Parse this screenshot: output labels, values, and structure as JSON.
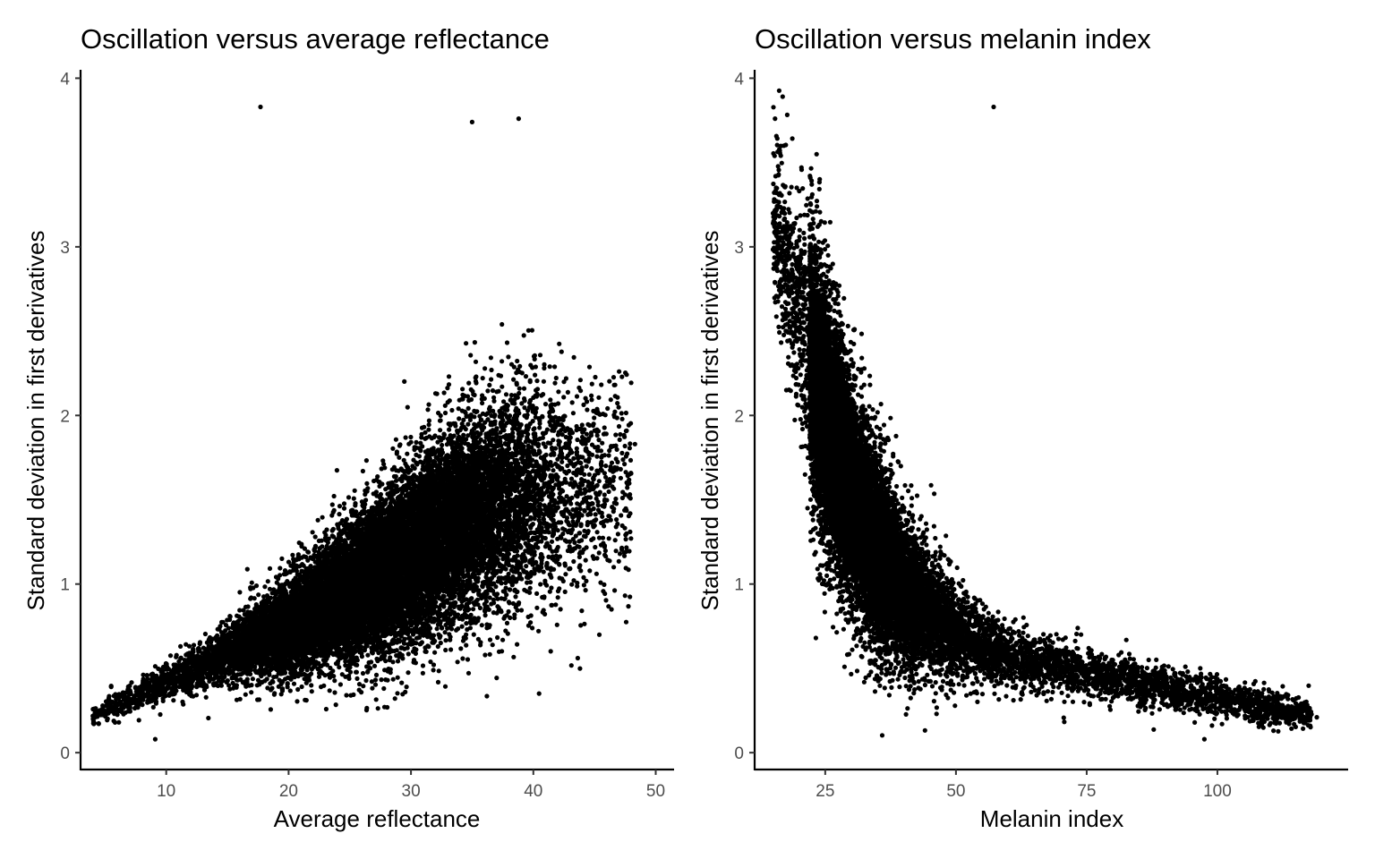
{
  "chart_data": [
    {
      "type": "scatter",
      "title": "Oscillation versus average reflectance",
      "xlabel": "Average reflectance",
      "ylabel": "Standard deviation in first derivatives",
      "xlim": [
        3,
        51.5
      ],
      "ylim": [
        -0.1,
        4.05
      ],
      "xticks": [
        10,
        20,
        30,
        40,
        50
      ],
      "yticks": [
        0,
        1,
        2,
        3,
        4
      ],
      "grid": false,
      "legend": "none",
      "point_color": "#000000",
      "n_points": 18000,
      "trend": {
        "x": [
          4,
          10,
          15,
          20,
          25,
          30,
          35,
          40,
          45,
          48
        ],
        "y": [
          0.22,
          0.42,
          0.58,
          0.75,
          0.95,
          1.18,
          1.42,
          1.55,
          1.55,
          1.6
        ],
        "spread": [
          0.04,
          0.06,
          0.1,
          0.16,
          0.22,
          0.28,
          0.35,
          0.38,
          0.38,
          0.35
        ]
      },
      "notable_points": [
        {
          "x": 17.7,
          "y": 3.83
        },
        {
          "x": 38.8,
          "y": 3.76
        },
        {
          "x": 35.0,
          "y": 3.74
        },
        {
          "x": 48.3,
          "y": 1.83
        },
        {
          "x": 9.1,
          "y": 0.08
        },
        {
          "x": 4.2,
          "y": 0.25
        }
      ]
    },
    {
      "type": "scatter",
      "title": "Oscillation versus melanin index",
      "xlabel": "Melanin index",
      "ylabel": "Standard deviation in first derivatives",
      "xlim": [
        11.5,
        125
      ],
      "ylim": [
        -0.1,
        4.05
      ],
      "xticks": [
        25,
        50,
        75,
        100
      ],
      "yticks": [
        0,
        1,
        2,
        3,
        4
      ],
      "grid": false,
      "legend": "none",
      "point_color": "#000000",
      "n_points": 18000,
      "trend": {
        "x": [
          15,
          20,
          25,
          30,
          35,
          40,
          50,
          60,
          75,
          90,
          105,
          118
        ],
        "y": [
          3.2,
          2.6,
          2.0,
          1.55,
          1.2,
          0.95,
          0.7,
          0.57,
          0.47,
          0.38,
          0.3,
          0.22
        ],
        "spread": [
          0.25,
          0.35,
          0.4,
          0.35,
          0.3,
          0.24,
          0.16,
          0.1,
          0.08,
          0.07,
          0.06,
          0.05
        ]
      },
      "notable_points": [
        {
          "x": 57.2,
          "y": 3.83
        },
        {
          "x": 15.4,
          "y": 3.76
        },
        {
          "x": 117.5,
          "y": 0.25
        },
        {
          "x": 119.0,
          "y": 0.21
        },
        {
          "x": 97.5,
          "y": 0.08
        }
      ]
    }
  ]
}
